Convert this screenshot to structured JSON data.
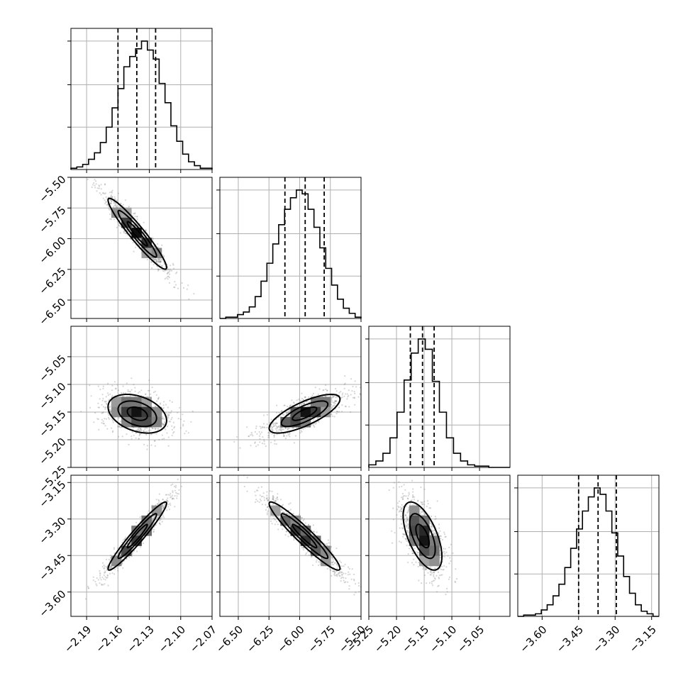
{
  "chart_data": {
    "type": "corner",
    "grid": true,
    "parameters": [
      {
        "range": [
          -2.205,
          -2.07
        ],
        "mean": -2.1415,
        "sigma": 0.016,
        "quantiles": [
          -2.16,
          -2.142,
          -2.124
        ],
        "ticks": [
          "−2.19",
          "−2.16",
          "−2.13",
          "−2.10",
          "−2.07"
        ],
        "tick_values": [
          -2.19,
          -2.16,
          -2.13,
          -2.1,
          -2.07
        ],
        "hist": [
          0.01,
          0.02,
          0.04,
          0.08,
          0.13,
          0.21,
          0.33,
          0.48,
          0.63,
          0.8,
          0.88,
          0.94,
          1.0,
          0.93,
          0.86,
          0.67,
          0.52,
          0.34,
          0.22,
          0.12,
          0.06,
          0.03,
          0.01,
          0.01
        ]
      },
      {
        "range": [
          -6.65,
          -5.5
        ],
        "mean": -5.96,
        "sigma": 0.165,
        "quantiles": [
          -6.12,
          -5.955,
          -5.8
        ],
        "ticks": [
          "−6.50",
          "−6.25",
          "−6.00",
          "−5.75",
          "−5.50"
        ],
        "tick_values": [
          -6.5,
          -6.25,
          -6.0,
          -5.75,
          -5.5
        ],
        "hist": [
          0.0,
          0.01,
          0.01,
          0.03,
          0.05,
          0.09,
          0.17,
          0.29,
          0.43,
          0.58,
          0.73,
          0.85,
          0.94,
          1.0,
          0.97,
          0.85,
          0.71,
          0.55,
          0.39,
          0.26,
          0.15,
          0.08,
          0.04,
          0.01
        ]
      },
      {
        "range": [
          -5.25,
          -4.995
        ],
        "mean": -5.153,
        "sigma": 0.02,
        "quantiles": [
          -5.175,
          -5.153,
          -5.132
        ],
        "ticks": [
          "−5.25",
          "−5.20",
          "−5.15",
          "−5.10",
          "−5.05"
        ],
        "tick_values": [
          -5.25,
          -5.2,
          -5.15,
          -5.1,
          -5.05
        ],
        "hist": [
          0.02,
          0.05,
          0.11,
          0.23,
          0.43,
          0.68,
          0.89,
          1.0,
          0.92,
          0.67,
          0.43,
          0.23,
          0.11,
          0.05,
          0.02,
          0.01,
          0.01,
          0.0,
          0.0,
          0.0
        ]
      },
      {
        "range": [
          -3.7,
          -3.12
        ],
        "mean": -3.37,
        "sigma": 0.08,
        "quantiles": [
          -3.45,
          -3.37,
          -3.295
        ],
        "ticks": [
          "−3.60",
          "−3.45",
          "−3.30",
          "−3.15"
        ],
        "tick_values": [
          -3.6,
          -3.45,
          -3.3,
          -3.15
        ],
        "hist": [
          0.0,
          0.01,
          0.01,
          0.02,
          0.05,
          0.09,
          0.16,
          0.25,
          0.38,
          0.53,
          0.68,
          0.82,
          0.93,
          1.0,
          0.95,
          0.82,
          0.65,
          0.47,
          0.31,
          0.18,
          0.09,
          0.04,
          0.02,
          0.0
        ]
      }
    ],
    "correlations": {
      "1-0": -0.95,
      "2-0": -0.35,
      "2-1": 0.75,
      "3-0": 0.96,
      "3-1": -0.95,
      "3-2": -0.6
    }
  }
}
